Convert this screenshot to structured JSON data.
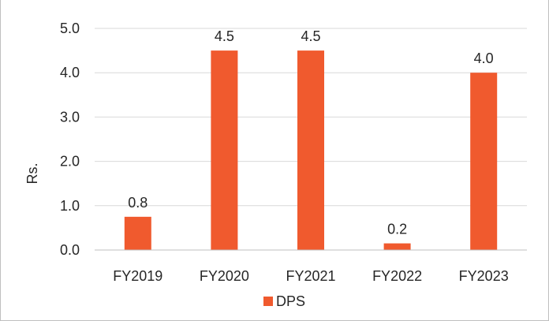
{
  "colors": {
    "bar": "#F05A2E",
    "gridline": "#D9D9D9",
    "axis": "#BFBFBF",
    "text": "#262626"
  },
  "chart_data": {
    "type": "bar",
    "categories": [
      "FY2019",
      "FY2020",
      "FY2021",
      "FY2022",
      "FY2023"
    ],
    "series": [
      {
        "name": "DPS",
        "values": [
          0.75,
          4.5,
          4.5,
          0.15,
          4.0
        ],
        "data_labels": [
          "0.8",
          "4.5",
          "4.5",
          "0.2",
          "4.0"
        ]
      }
    ],
    "ylabel": "Rs.",
    "ylim": [
      0,
      5
    ],
    "yticks": [
      "0.0",
      "1.0",
      "2.0",
      "3.0",
      "4.0",
      "5.0"
    ],
    "grid": true,
    "legend": "bottom"
  }
}
